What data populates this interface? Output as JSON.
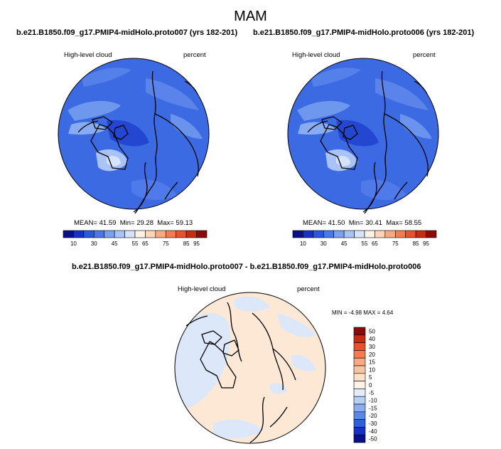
{
  "page_title": "MAM",
  "panels": [
    {
      "subtitle": "b.e21.B1850.f09_g17.PMIP4-midHolo.proto007 (yrs 182-201)",
      "left_label": "High-level cloud",
      "right_label": "percent",
      "stats": {
        "mean_label": "MEAN=",
        "mean": "41.59",
        "min_label": "Min=",
        "min": "29.28",
        "max_label": "Max=",
        "max": "59.13"
      }
    },
    {
      "subtitle": "b.e21.B1850.f09_g17.PMIP4-midHolo.proto006 (yrs 182-201)",
      "left_label": "High-level cloud",
      "right_label": "percent",
      "stats": {
        "mean_label": "MEAN=",
        "mean": "41.50",
        "min_label": "Min=",
        "min": "30.41",
        "max_label": "Max=",
        "max": "58.55"
      }
    },
    {
      "subtitle": "b.e21.B1850.f09_g17.PMIP4-midHolo.proto007 - b.e21.B1850.f09_g17.PMIP4-midHolo.proto006",
      "left_label": "High-level cloud",
      "right_label": "percent",
      "stats_text": "MIN =  -4.98 MAX =   4.64"
    }
  ],
  "chart_data": [
    {
      "type": "heatmap",
      "projection": "north-polar-stereographic",
      "variable": "High-level cloud",
      "units": "percent",
      "mean": 41.59,
      "min": 29.28,
      "max": 59.13,
      "colorbar": {
        "orientation": "horizontal",
        "tick_labels": [
          "10",
          "30",
          "45",
          "55",
          "65",
          "75",
          "85",
          "95"
        ],
        "colors": [
          "#0a0f8c",
          "#1630c8",
          "#2b56e0",
          "#4a78ec",
          "#7aa0f2",
          "#a8c4f6",
          "#d6e4fa",
          "#fff3e8",
          "#fcd4b8",
          "#f9a882",
          "#f47c50",
          "#e8522a",
          "#c82a12",
          "#8c0a0a"
        ]
      }
    },
    {
      "type": "heatmap",
      "projection": "north-polar-stereographic",
      "variable": "High-level cloud",
      "units": "percent",
      "mean": 41.5,
      "min": 30.41,
      "max": 58.55,
      "colorbar": {
        "orientation": "horizontal",
        "tick_labels": [
          "10",
          "30",
          "45",
          "55",
          "65",
          "75",
          "85",
          "95"
        ],
        "colors": [
          "#0a0f8c",
          "#1630c8",
          "#2b56e0",
          "#4a78ec",
          "#7aa0f2",
          "#a8c4f6",
          "#d6e4fa",
          "#fff3e8",
          "#fcd4b8",
          "#f9a882",
          "#f47c50",
          "#e8522a",
          "#c82a12",
          "#8c0a0a"
        ]
      }
    },
    {
      "type": "heatmap",
      "projection": "north-polar-stereographic",
      "variable": "High-level cloud",
      "units": "percent",
      "min": -4.98,
      "max": 4.64,
      "colorbar": {
        "orientation": "vertical",
        "tick_labels": [
          "50",
          "40",
          "30",
          "20",
          "15",
          "10",
          "5",
          "0",
          "-5",
          "-10",
          "-15",
          "-20",
          "-30",
          "-40",
          "-50"
        ],
        "colors": [
          "#8c0a0a",
          "#c82a12",
          "#e8522a",
          "#f47c50",
          "#f9a882",
          "#fbc4a0",
          "#fde0c8",
          "#fff3e8",
          "#e2ecfa",
          "#b8cff6",
          "#8aaff0",
          "#5a88e8",
          "#2f5fda",
          "#1630c8",
          "#0a0f8c"
        ]
      }
    }
  ]
}
